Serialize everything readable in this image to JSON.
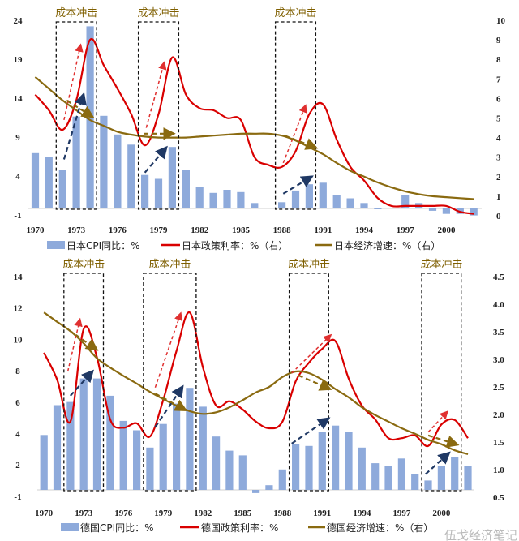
{
  "chart_data": [
    {
      "type": "bar+line",
      "years": [
        1970,
        1971,
        1972,
        1973,
        1974,
        1975,
        1976,
        1977,
        1978,
        1979,
        1980,
        1981,
        1982,
        1983,
        1984,
        1985,
        1986,
        1987,
        1988,
        1989,
        1990,
        1991,
        1992,
        1993,
        1994,
        1995,
        1996,
        1997,
        1998,
        1999,
        2000,
        2001,
        2002
      ],
      "x_tick_labels": [
        "1970",
        "1973",
        "1976",
        "1979",
        "1982",
        "1985",
        "1988",
        "1991",
        "1994",
        "1997",
        "2000"
      ],
      "left_axis": {
        "ticks": [
          "24",
          "19",
          "14",
          "9",
          "4",
          "-1"
        ],
        "ylim": [
          -1,
          24
        ]
      },
      "right_axis": {
        "ticks": [
          "10",
          "9",
          "8",
          "7",
          "6",
          "5",
          "4",
          "3",
          "2",
          "1",
          "0"
        ],
        "ylim": [
          0,
          10
        ]
      },
      "series": [
        {
          "name": "日本CPI同比：%",
          "type": "bar",
          "axis": "left",
          "color": "#8eaadb",
          "values": [
            7.1,
            6.6,
            5.0,
            11.8,
            23.4,
            11.9,
            9.5,
            8.2,
            4.3,
            3.8,
            7.9,
            5.0,
            2.8,
            2.0,
            2.4,
            2.1,
            0.7,
            0.1,
            0.8,
            2.3,
            3.1,
            3.3,
            1.7,
            1.3,
            0.7,
            -0.1,
            0.1,
            1.7,
            0.7,
            -0.3,
            -0.7,
            -0.7,
            -0.9
          ]
        },
        {
          "name": "日本政策利率：%（右）",
          "type": "line",
          "axis": "right",
          "color": "#d90000",
          "values": [
            6.2,
            5.4,
            4.4,
            5.9,
            9.0,
            7.7,
            6.5,
            5.2,
            3.6,
            5.2,
            8.1,
            6.2,
            5.5,
            5.4,
            5.0,
            4.9,
            3.0,
            2.6,
            2.5,
            3.3,
            5.2,
            5.7,
            3.9,
            2.5,
            1.8,
            0.9,
            0.5,
            0.5,
            0.5,
            0.5,
            0.5,
            0.2,
            0.1
          ]
        },
        {
          "name": "日本经济增速：%（右）",
          "type": "line",
          "axis": "right",
          "color": "#8a6a10",
          "values": [
            7.1,
            6.5,
            5.9,
            5.4,
            4.9,
            4.6,
            4.3,
            4.15,
            4.05,
            4.0,
            4.0,
            4.0,
            4.05,
            4.1,
            4.15,
            4.2,
            4.2,
            4.2,
            4.1,
            3.85,
            3.5,
            3.15,
            2.7,
            2.3,
            2.0,
            1.7,
            1.45,
            1.25,
            1.1,
            1.0,
            0.95,
            0.9,
            0.85
          ]
        }
      ],
      "shock_periods": [
        {
          "label": "成本冲击",
          "from": 1972,
          "to": 1974
        },
        {
          "label": "成本冲击",
          "from": 1978,
          "to": 1980
        },
        {
          "label": "成本冲击",
          "from": 1988,
          "to": 1990
        }
      ],
      "arrows": [
        {
          "axis": "right",
          "color": "#e03030",
          "from": [
            1972.1,
            4.9
          ],
          "to": [
            1973.3,
            8.7
          ]
        },
        {
          "axis": "left",
          "color": "#1f3864",
          "from": [
            1972.1,
            6.3
          ],
          "to": [
            1973.5,
            14.5
          ]
        },
        {
          "axis": "right",
          "color": "#8a6a10",
          "from": [
            1972.3,
            5.9
          ],
          "to": [
            1974.1,
            5.1
          ]
        },
        {
          "axis": "right",
          "color": "#e03030",
          "from": [
            1978.1,
            4.5
          ],
          "to": [
            1979.4,
            7.8
          ]
        },
        {
          "axis": "left",
          "color": "#1f3864",
          "from": [
            1978.0,
            4.6
          ],
          "to": [
            1979.5,
            7.7
          ]
        },
        {
          "axis": "right",
          "color": "#8a6a10",
          "from": [
            1977.9,
            4.2
          ],
          "to": [
            1980.0,
            4.2
          ]
        },
        {
          "axis": "right",
          "color": "#e03030",
          "from": [
            1988.1,
            2.7
          ],
          "to": [
            1989.7,
            5.6
          ]
        },
        {
          "axis": "left",
          "color": "#1f3864",
          "from": [
            1988.1,
            1.9
          ],
          "to": [
            1990.1,
            4.0
          ]
        },
        {
          "axis": "right",
          "color": "#8a6a10",
          "from": [
            1988.2,
            4.1
          ],
          "to": [
            1990.4,
            3.5
          ]
        }
      ],
      "legend_position": "bottom"
    },
    {
      "type": "bar+line",
      "years": [
        1970,
        1971,
        1972,
        1973,
        1974,
        1975,
        1976,
        1977,
        1978,
        1979,
        1980,
        1981,
        1982,
        1983,
        1984,
        1985,
        1986,
        1987,
        1988,
        1989,
        1990,
        1991,
        1992,
        1993,
        1994,
        1995,
        1996,
        1997,
        1998,
        1999,
        2000,
        2001,
        2002
      ],
      "x_tick_labels": [
        "1970",
        "1973",
        "1976",
        "1979",
        "1982",
        "1985",
        "1988",
        "1991",
        "1994",
        "1997",
        "2000"
      ],
      "left_axis": {
        "ticks": [
          "14",
          "12",
          "10",
          "8",
          "6",
          "4",
          "2",
          "-1"
        ],
        "ylim": [
          -1,
          14
        ]
      },
      "right_axis": {
        "ticks": [
          "4.5",
          "4.0",
          "3.5",
          "3.0",
          "2.5",
          "2.0",
          "1.5",
          "1.0",
          "0.5"
        ],
        "ylim": [
          0.5,
          4.5
        ]
      },
      "series": [
        {
          "name": "德国CPI同比：%",
          "type": "bar",
          "axis": "left",
          "color": "#8eaadb",
          "values": [
            3.5,
            5.4,
            5.6,
            7.1,
            7.1,
            6.0,
            4.4,
            3.8,
            2.7,
            4.2,
            5.5,
            6.5,
            5.3,
            3.4,
            2.5,
            2.2,
            -0.2,
            0.3,
            1.3,
            2.9,
            2.8,
            3.7,
            4.1,
            3.7,
            2.7,
            1.7,
            1.5,
            2.0,
            1.0,
            0.6,
            1.5,
            2.1,
            1.5
          ]
        },
        {
          "name": "德国政策利率：%",
          "type": "line",
          "axis": "right",
          "color": "#d90000",
          "values": [
            3.12,
            2.63,
            1.87,
            3.55,
            3.04,
            1.91,
            1.76,
            1.84,
            1.6,
            2.26,
            3.15,
            3.85,
            2.85,
            2.16,
            2.24,
            2.09,
            1.87,
            1.75,
            1.87,
            2.6,
            2.94,
            3.19,
            3.33,
            2.65,
            2.16,
            1.91,
            1.57,
            1.57,
            1.62,
            1.43,
            1.82,
            1.9,
            1.57
          ]
        },
        {
          "name": "德国经济增速：%（右）",
          "type": "line",
          "axis": "right",
          "color": "#8a6a10",
          "values": [
            3.85,
            3.68,
            3.51,
            3.29,
            3.02,
            2.85,
            2.7,
            2.56,
            2.41,
            2.28,
            2.16,
            2.06,
            2.01,
            2.04,
            2.13,
            2.26,
            2.4,
            2.5,
            2.68,
            2.78,
            2.75,
            2.63,
            2.46,
            2.31,
            2.13,
            1.99,
            1.87,
            1.75,
            1.65,
            1.54,
            1.46,
            1.35,
            1.28
          ]
        }
      ],
      "shock_periods": [
        {
          "label": "成本冲击",
          "from": 1972,
          "to": 1974
        },
        {
          "label": "成本冲击",
          "from": 1978,
          "to": 1981
        },
        {
          "label": "成本冲击",
          "from": 1989,
          "to": 1991
        },
        {
          "label": "成本冲击",
          "from": 1999,
          "to": 2001
        }
      ],
      "arrows": [
        {
          "axis": "right",
          "color": "#e03030",
          "from": [
            1971.8,
            2.78
          ],
          "to": [
            1972.7,
            3.71
          ]
        },
        {
          "axis": "left",
          "color": "#1f3864",
          "from": [
            1972.0,
            6.0
          ],
          "to": [
            1973.6,
            7.5
          ]
        },
        {
          "axis": "right",
          "color": "#8a6a10",
          "from": [
            1971.9,
            3.53
          ],
          "to": [
            1973.9,
            3.19
          ]
        },
        {
          "axis": "right",
          "color": "#e03030",
          "from": [
            1978.4,
            2.49
          ],
          "to": [
            1980.3,
            3.82
          ]
        },
        {
          "axis": "left",
          "color": "#1f3864",
          "from": [
            1978.4,
            4.0
          ],
          "to": [
            1980.4,
            6.5
          ]
        },
        {
          "axis": "right",
          "color": "#8a6a10",
          "from": [
            1978.4,
            2.38
          ],
          "to": [
            1980.6,
            2.09
          ]
        },
        {
          "axis": "right",
          "color": "#e03030",
          "from": [
            1988.7,
            2.75
          ],
          "to": [
            1991.6,
            3.43
          ]
        },
        {
          "axis": "left",
          "color": "#1f3864",
          "from": [
            1988.7,
            2.95
          ],
          "to": [
            1991.4,
            4.5
          ]
        },
        {
          "axis": "right",
          "color": "#8a6a10",
          "from": [
            1989.2,
            2.71
          ],
          "to": [
            1991.5,
            2.47
          ]
        },
        {
          "axis": "right",
          "color": "#e03030",
          "from": [
            1999.0,
            1.68
          ],
          "to": [
            2000.4,
            2.04
          ]
        },
        {
          "axis": "left",
          "color": "#1f3864",
          "from": [
            1998.8,
            1.0
          ],
          "to": [
            2000.5,
            2.3
          ]
        },
        {
          "axis": "right",
          "color": "#8a6a10",
          "from": [
            1999.0,
            1.62
          ],
          "to": [
            2001.1,
            1.46
          ]
        }
      ],
      "legend_position": "bottom"
    }
  ],
  "watermark": "伍戈经济笔记"
}
